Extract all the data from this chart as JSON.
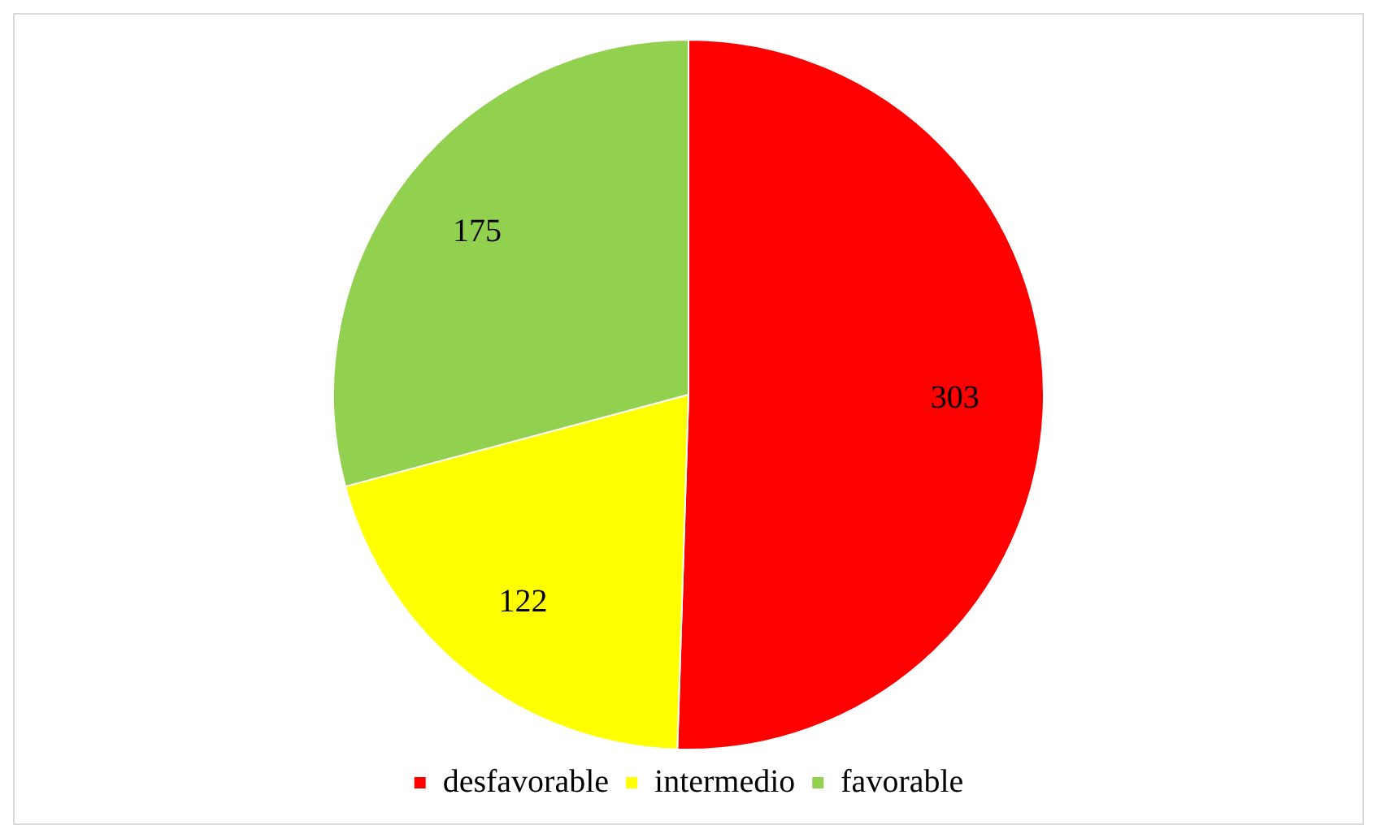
{
  "chart_data": {
    "type": "pie",
    "categories": [
      "desfavorable",
      "intermedio",
      "favorable"
    ],
    "values": [
      303,
      122,
      175
    ],
    "colors": [
      "#ff0000",
      "#ffff00",
      "#92d050"
    ],
    "data_labels": true,
    "legend": "bottom"
  }
}
